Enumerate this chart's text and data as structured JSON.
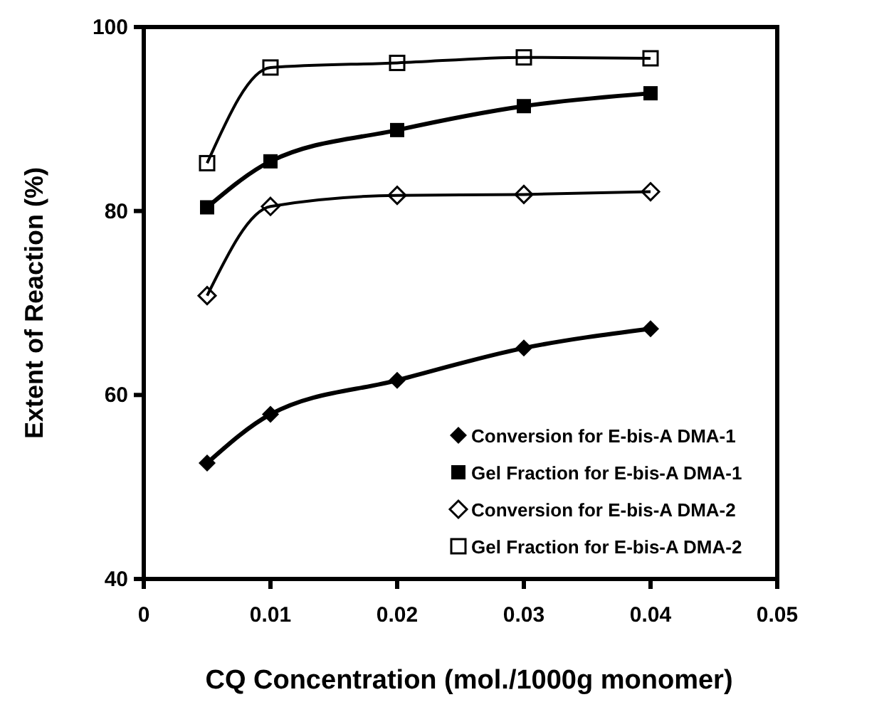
{
  "chart_data": {
    "type": "line",
    "xlabel": "CQ Concentration  (mol./1000g monomer)",
    "ylabel": "Extent of Reaction (%)",
    "x": [
      0.005,
      0.01,
      0.02,
      0.03,
      0.04
    ],
    "xlim": [
      0,
      0.05
    ],
    "xticks": [
      0,
      0.01,
      0.02,
      0.03,
      0.04,
      0.05
    ],
    "ylim": [
      40,
      100
    ],
    "yticks": [
      40,
      60,
      80,
      100
    ],
    "grid": false,
    "legend": "bottom right",
    "series": [
      {
        "name": "Conversion for E-bis-A DMA-1",
        "color": "#000000",
        "marker": "diamond",
        "values": [
          52.6,
          57.9,
          61.6,
          65.1,
          67.2
        ]
      },
      {
        "name": "Gel Fraction for E-bis-A DMA-1",
        "color": "#000000",
        "marker": "square",
        "values": [
          80.4,
          85.4,
          88.8,
          91.4,
          92.8
        ]
      },
      {
        "name": "Conversion for E-bis-A DMA-2",
        "color": "#000000",
        "marker": "diamond-open",
        "values": [
          70.8,
          80.5,
          81.7,
          81.8,
          82.1
        ]
      },
      {
        "name": "Gel Fraction for E-bis-A DMA-2",
        "color": "#000000",
        "marker": "square-open",
        "values": [
          85.2,
          95.6,
          96.1,
          96.7,
          96.6
        ]
      }
    ]
  }
}
